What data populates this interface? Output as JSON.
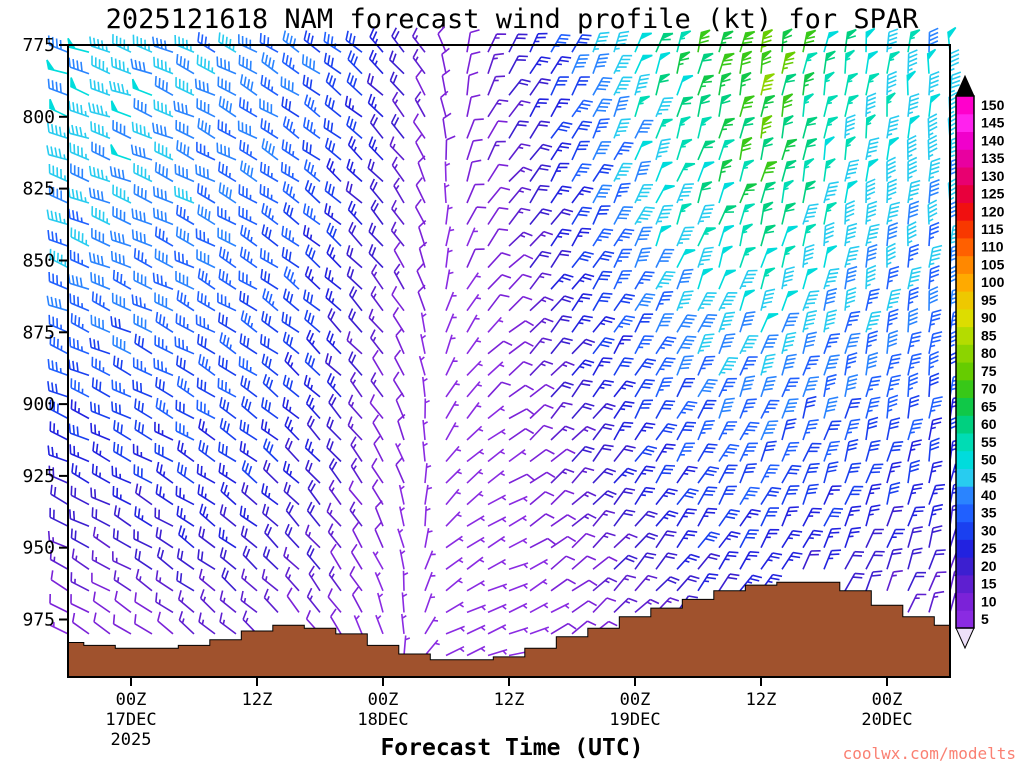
{
  "title": "2025121618 NAM forecast wind profile (kt) for SPAR",
  "xlabel": "Forecast Time (UTC)",
  "watermark": "coolwx.com/modelts",
  "colors": {
    "terrain": "#A0522D",
    "watermark": "#FA8072",
    "axis": "#000000",
    "background": "#FFFFFF",
    "colorbar_above_max": "#000000",
    "colorbar_below_min": "#EDE0F8"
  },
  "chart_data": {
    "type": "scatter",
    "subtype": "wind-barb-time-height-profile",
    "title": "2025121618 NAM forecast wind profile (kt) for SPAR",
    "xlabel": "Forecast Time (UTC)",
    "ylabel": "",
    "units": "kt",
    "ylim": [
      775,
      995
    ],
    "y_ticks": [
      775,
      800,
      825,
      850,
      875,
      900,
      925,
      950,
      975
    ],
    "time_span_hours": [
      0,
      84
    ],
    "x_ticks": [
      {
        "hour": 6,
        "time": "00Z",
        "date": "17DEC",
        "year": "2025"
      },
      {
        "hour": 18,
        "time": "12Z"
      },
      {
        "hour": 30,
        "time": "00Z",
        "date": "18DEC"
      },
      {
        "hour": 42,
        "time": "12Z"
      },
      {
        "hour": 54,
        "time": "00Z",
        "date": "19DEC"
      },
      {
        "hour": 66,
        "time": "12Z"
      },
      {
        "hour": 78,
        "time": "00Z",
        "date": "20DEC"
      }
    ],
    "legend_position": "right-colorbar",
    "grid": false,
    "speed_scale": {
      "values": [
        5,
        10,
        15,
        20,
        25,
        30,
        35,
        40,
        45,
        50,
        55,
        60,
        65,
        70,
        75,
        80,
        85,
        90,
        95,
        100,
        105,
        110,
        115,
        120,
        125,
        130,
        135,
        140,
        145,
        150
      ],
      "colors": [
        "#8A2BE2",
        "#7B22D8",
        "#5E1FD0",
        "#3C1FD0",
        "#2222E0",
        "#1A40F0",
        "#2060FF",
        "#2A84FF",
        "#28CCF0",
        "#00DCDC",
        "#00DCB4",
        "#00D080",
        "#10C848",
        "#38C818",
        "#66CC00",
        "#8CD400",
        "#B4DC00",
        "#DDDD00",
        "#EEC800",
        "#FFAA00",
        "#FF8800",
        "#FF6000",
        "#F83800",
        "#F01010",
        "#E8003C",
        "#E80070",
        "#E800A0",
        "#F000CC",
        "#FF22EE",
        "#FF00CC"
      ]
    },
    "barb_density": {
      "hours_step": 2,
      "pressure_step_hpa": 7.5,
      "pressure_start": 777.5,
      "pressure_end": 990
    },
    "control_grid": {
      "comment": "speeds (kt) and meteorological from-directions (deg) at control times (hours from 16DEC18Z) and pressures (hPa); field is interpolated for display",
      "times_hours": [
        0,
        6,
        12,
        18,
        24,
        30,
        36,
        42,
        48,
        54,
        60,
        66,
        72,
        78,
        84
      ],
      "pressures": [
        775,
        800,
        825,
        850,
        875,
        900,
        925,
        950,
        975,
        995
      ],
      "speed_kt": [
        [
          46,
          46,
          42,
          40,
          36,
          26,
          10,
          20,
          36,
          50,
          65,
          75,
          58,
          50,
          46
        ],
        [
          45,
          45,
          41,
          38,
          34,
          23,
          8,
          18,
          33,
          48,
          60,
          70,
          55,
          48,
          45
        ],
        [
          43,
          43,
          40,
          36,
          32,
          20,
          7,
          15,
          30,
          45,
          55,
          65,
          50,
          45,
          43
        ],
        [
          40,
          40,
          38,
          35,
          30,
          18,
          6,
          12,
          28,
          40,
          50,
          56,
          46,
          42,
          40
        ],
        [
          36,
          36,
          35,
          32,
          28,
          15,
          5,
          10,
          25,
          35,
          43,
          46,
          41,
          38,
          36
        ],
        [
          31,
          31,
          32,
          30,
          25,
          12,
          5,
          8,
          20,
          30,
          36,
          39,
          36,
          33,
          31
        ],
        [
          23,
          26,
          28,
          26,
          22,
          10,
          4,
          7,
          16,
          26,
          31,
          33,
          30,
          28,
          26
        ],
        [
          16,
          19,
          22,
          22,
          18,
          8,
          4,
          6,
          12,
          21,
          26,
          28,
          25,
          22,
          20
        ],
        [
          9,
          11,
          15,
          15,
          12,
          6,
          4,
          5,
          9,
          15,
          19,
          21,
          18,
          15,
          13
        ],
        [
          6,
          8,
          10,
          10,
          8,
          5,
          4,
          5,
          7,
          10,
          13,
          15,
          12,
          10,
          9
        ]
      ],
      "dir_deg": [
        [
          290,
          290,
          295,
          300,
          305,
          315,
          340,
          30,
          25,
          20,
          15,
          10,
          10,
          5,
          0
        ],
        [
          290,
          290,
          295,
          300,
          305,
          315,
          350,
          35,
          30,
          20,
          15,
          10,
          10,
          5,
          0
        ],
        [
          290,
          292,
          296,
          300,
          308,
          318,
          0,
          40,
          30,
          25,
          20,
          15,
          10,
          5,
          0
        ],
        [
          292,
          293,
          297,
          302,
          310,
          320,
          10,
          45,
          35,
          25,
          20,
          15,
          10,
          5,
          5
        ],
        [
          292,
          295,
          298,
          303,
          312,
          322,
          20,
          50,
          38,
          30,
          25,
          20,
          15,
          10,
          5
        ],
        [
          293,
          296,
          300,
          305,
          315,
          325,
          30,
          55,
          40,
          30,
          25,
          20,
          15,
          10,
          5
        ],
        [
          295,
          298,
          302,
          308,
          318,
          330,
          40,
          60,
          45,
          35,
          30,
          25,
          20,
          15,
          10
        ],
        [
          297,
          300,
          305,
          310,
          320,
          335,
          50,
          65,
          50,
          40,
          35,
          30,
          25,
          20,
          15
        ],
        [
          300,
          303,
          308,
          313,
          323,
          340,
          60,
          70,
          55,
          45,
          40,
          35,
          30,
          25,
          20
        ],
        [
          302,
          305,
          310,
          315,
          325,
          345,
          70,
          75,
          60,
          50,
          45,
          40,
          35,
          30,
          25
        ]
      ]
    },
    "terrain_profile": {
      "times_hours": [
        0,
        3,
        6,
        9,
        12,
        15,
        18,
        21,
        24,
        27,
        30,
        33,
        36,
        39,
        42,
        45,
        48,
        51,
        54,
        57,
        60,
        63,
        66,
        69,
        72,
        75,
        78,
        81,
        84
      ],
      "surface_pressure": [
        983,
        984,
        985,
        985,
        984,
        982,
        979,
        977,
        978,
        980,
        984,
        987,
        989,
        989,
        988,
        985,
        981,
        978,
        974,
        971,
        968,
        965,
        963,
        962,
        962,
        965,
        970,
        974,
        977
      ]
    }
  }
}
